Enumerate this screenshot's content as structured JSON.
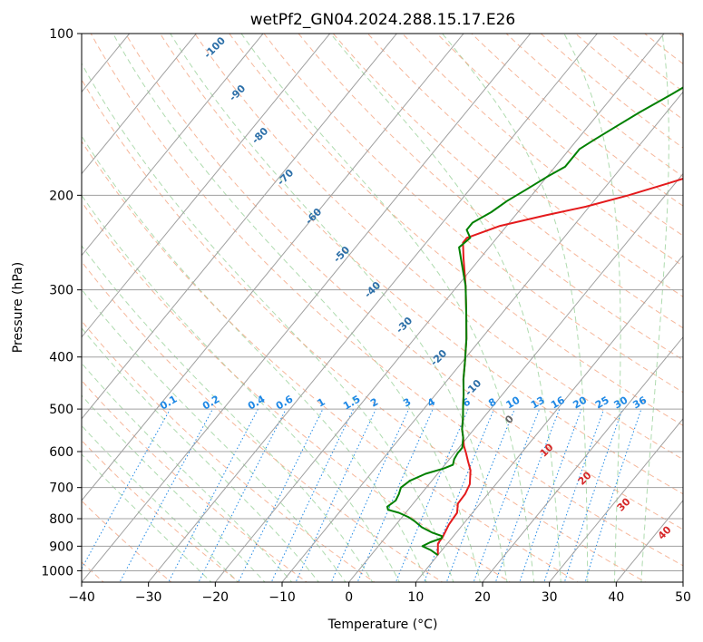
{
  "chart_data": {
    "type": "line",
    "chart_kind": "skew-T log-P diagram",
    "title": "wetPf2_GN04.2024.288.15.17.E26",
    "xlabel": "Temperature (°C)",
    "ylabel": "Pressure (hPa)",
    "xlim": [
      -40,
      50
    ],
    "ylim": [
      1050,
      100
    ],
    "y_scale": "log",
    "x_ticks": [
      -40,
      -30,
      -20,
      -10,
      0,
      10,
      20,
      30,
      40,
      50
    ],
    "y_ticks": [
      100,
      200,
      300,
      400,
      500,
      600,
      700,
      800,
      900,
      1000
    ],
    "grid": true,
    "series": [
      {
        "color": "#e41a1c",
        "points": [
          [
            10.0,
            935
          ],
          [
            8.6,
            890
          ],
          [
            8.5,
            865
          ],
          [
            7.9,
            820
          ],
          [
            7.7,
            780
          ],
          [
            6.7,
            750
          ],
          [
            6.6,
            720
          ],
          [
            6.1,
            690
          ],
          [
            4.5,
            650
          ],
          [
            3.0,
            625
          ],
          [
            1.8,
            605
          ],
          [
            0.5,
            585
          ],
          [
            -0.6,
            565
          ],
          [
            -1.8,
            545
          ],
          [
            -3.0,
            520
          ],
          [
            -4.4,
            495
          ],
          [
            -5.8,
            470
          ],
          [
            -7.7,
            440
          ],
          [
            -9.5,
            410
          ],
          [
            -12.2,
            370
          ],
          [
            -15.5,
            330
          ],
          [
            -18.8,
            295
          ],
          [
            -22.5,
            262
          ],
          [
            -24.5,
            245
          ],
          [
            -24.5,
            240
          ],
          [
            -21.0,
            228
          ],
          [
            -15.5,
            218
          ],
          [
            -10.5,
            210
          ],
          [
            -5.5,
            200
          ],
          [
            -1.0,
            190
          ],
          [
            3.5,
            180
          ],
          [
            7.0,
            170
          ],
          [
            10.0,
            158
          ],
          [
            12.5,
            147
          ],
          [
            15.0,
            136
          ],
          [
            18.0,
            124
          ],
          [
            21.0,
            115
          ],
          [
            24.5,
            106
          ],
          [
            27.5,
            100
          ]
        ]
      },
      {
        "color": "#008000",
        "points": [
          [
            10.0,
            935
          ],
          [
            8.3,
            915
          ],
          [
            6.6,
            900
          ],
          [
            7.3,
            885
          ],
          [
            8.5,
            870
          ],
          [
            8.3,
            862
          ],
          [
            6.5,
            850
          ],
          [
            4.2,
            830
          ],
          [
            2.5,
            810
          ],
          [
            1.0,
            795
          ],
          [
            -1.0,
            780
          ],
          [
            -3.0,
            770
          ],
          [
            -3.5,
            760
          ],
          [
            -3.0,
            740
          ],
          [
            -3.3,
            720
          ],
          [
            -3.8,
            700
          ],
          [
            -3.3,
            680
          ],
          [
            -1.8,
            660
          ],
          [
            0.3,
            645
          ],
          [
            1.2,
            635
          ],
          [
            0.7,
            620
          ],
          [
            0.5,
            605
          ],
          [
            0.5,
            590
          ],
          [
            -0.6,
            565
          ],
          [
            -1.8,
            545
          ],
          [
            -3.0,
            520
          ],
          [
            -4.4,
            495
          ],
          [
            -5.8,
            470
          ],
          [
            -7.7,
            440
          ],
          [
            -9.5,
            410
          ],
          [
            -12.2,
            370
          ],
          [
            -15.5,
            330
          ],
          [
            -18.8,
            295
          ],
          [
            -22.5,
            265
          ],
          [
            -24.5,
            250
          ],
          [
            -24.0,
            240
          ],
          [
            -25.5,
            232
          ],
          [
            -25.5,
            225
          ],
          [
            -24.0,
            215
          ],
          [
            -23.0,
            205
          ],
          [
            -21.5,
            195
          ],
          [
            -20.0,
            185
          ],
          [
            -18.5,
            177
          ],
          [
            -18.5,
            170
          ],
          [
            -18.5,
            164
          ],
          [
            -17.5,
            158
          ],
          [
            -16.0,
            150
          ],
          [
            -14.0,
            140
          ],
          [
            -11.5,
            130
          ],
          [
            -8.5,
            118
          ],
          [
            -6.0,
            108
          ],
          [
            -4.3,
            100
          ]
        ]
      }
    ],
    "dry_adiabat_labels": [
      "-100",
      "-90",
      "-80",
      "-70",
      "-60",
      "-50",
      "-40",
      "-30",
      "-20",
      "-10",
      "0",
      "10",
      "20",
      "30",
      "40"
    ],
    "mixing_ratio_labels": [
      "0.1",
      "0.2",
      "0.4",
      "0.6",
      "1",
      "1.5",
      "2",
      "3",
      "4",
      "6",
      "8",
      "10",
      "13",
      "16",
      "20",
      "25",
      "30",
      "36"
    ],
    "mixing_ratio_values": [
      0.1,
      0.2,
      0.4,
      0.6,
      1,
      1.5,
      2,
      3,
      4,
      6,
      8,
      10,
      13,
      16,
      20,
      25,
      30,
      36
    ],
    "colors": {
      "temperature": "#e41a1c",
      "dewpoint": "#008000",
      "isotherm": "#a0a0a0",
      "dry_adiabat": "#f4a582",
      "moist_adiabat": "#a6d7a6",
      "mixing_ratio": "#1e88e5",
      "cold_label": "#2c6fa8",
      "warm_label": "#d62728",
      "zero_label": "#666666"
    }
  }
}
